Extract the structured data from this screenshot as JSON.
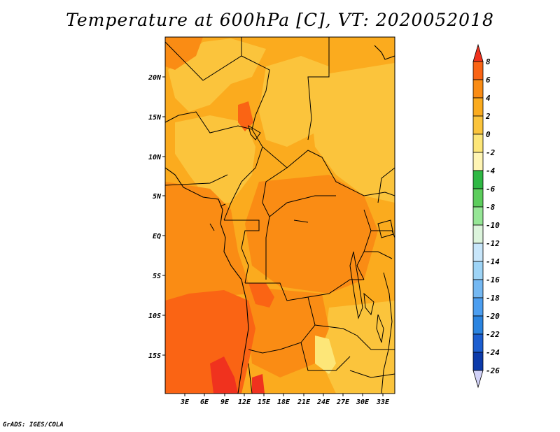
{
  "title": "Temperature at 600hPa [C], VT: 2020052018",
  "credit": "GrADS: IGES/COLA",
  "map": {
    "lat_labels": [
      "20N",
      "15N",
      "10N",
      "5N",
      "EQ",
      "5S",
      "10S",
      "15S"
    ],
    "lon_labels": [
      "3E",
      "6E",
      "9E",
      "12E",
      "15E",
      "18E",
      "21E",
      "24E",
      "27E",
      "30E",
      "33E"
    ]
  },
  "colorbar": {
    "labels": [
      "8",
      "6",
      "4",
      "2",
      "0",
      "-2",
      "-4",
      "-6",
      "-8",
      "-10",
      "-12",
      "-14",
      "-16",
      "-18",
      "-20",
      "-22",
      "-24",
      "-26"
    ],
    "colors": [
      "#f0321e",
      "#fa6414",
      "#fa8c14",
      "#fbab1e",
      "#fbc43c",
      "#fde678",
      "#fff5b4",
      "#2fb844",
      "#5ccd5c",
      "#96e696",
      "#dcf4dc",
      "#c8e6fa",
      "#9ed4f6",
      "#74b8f2",
      "#4c9ef0",
      "#2b84e0",
      "#1c5ed0",
      "#0c3aaa",
      "#0a1a78",
      "#d2d2f8"
    ]
  }
}
